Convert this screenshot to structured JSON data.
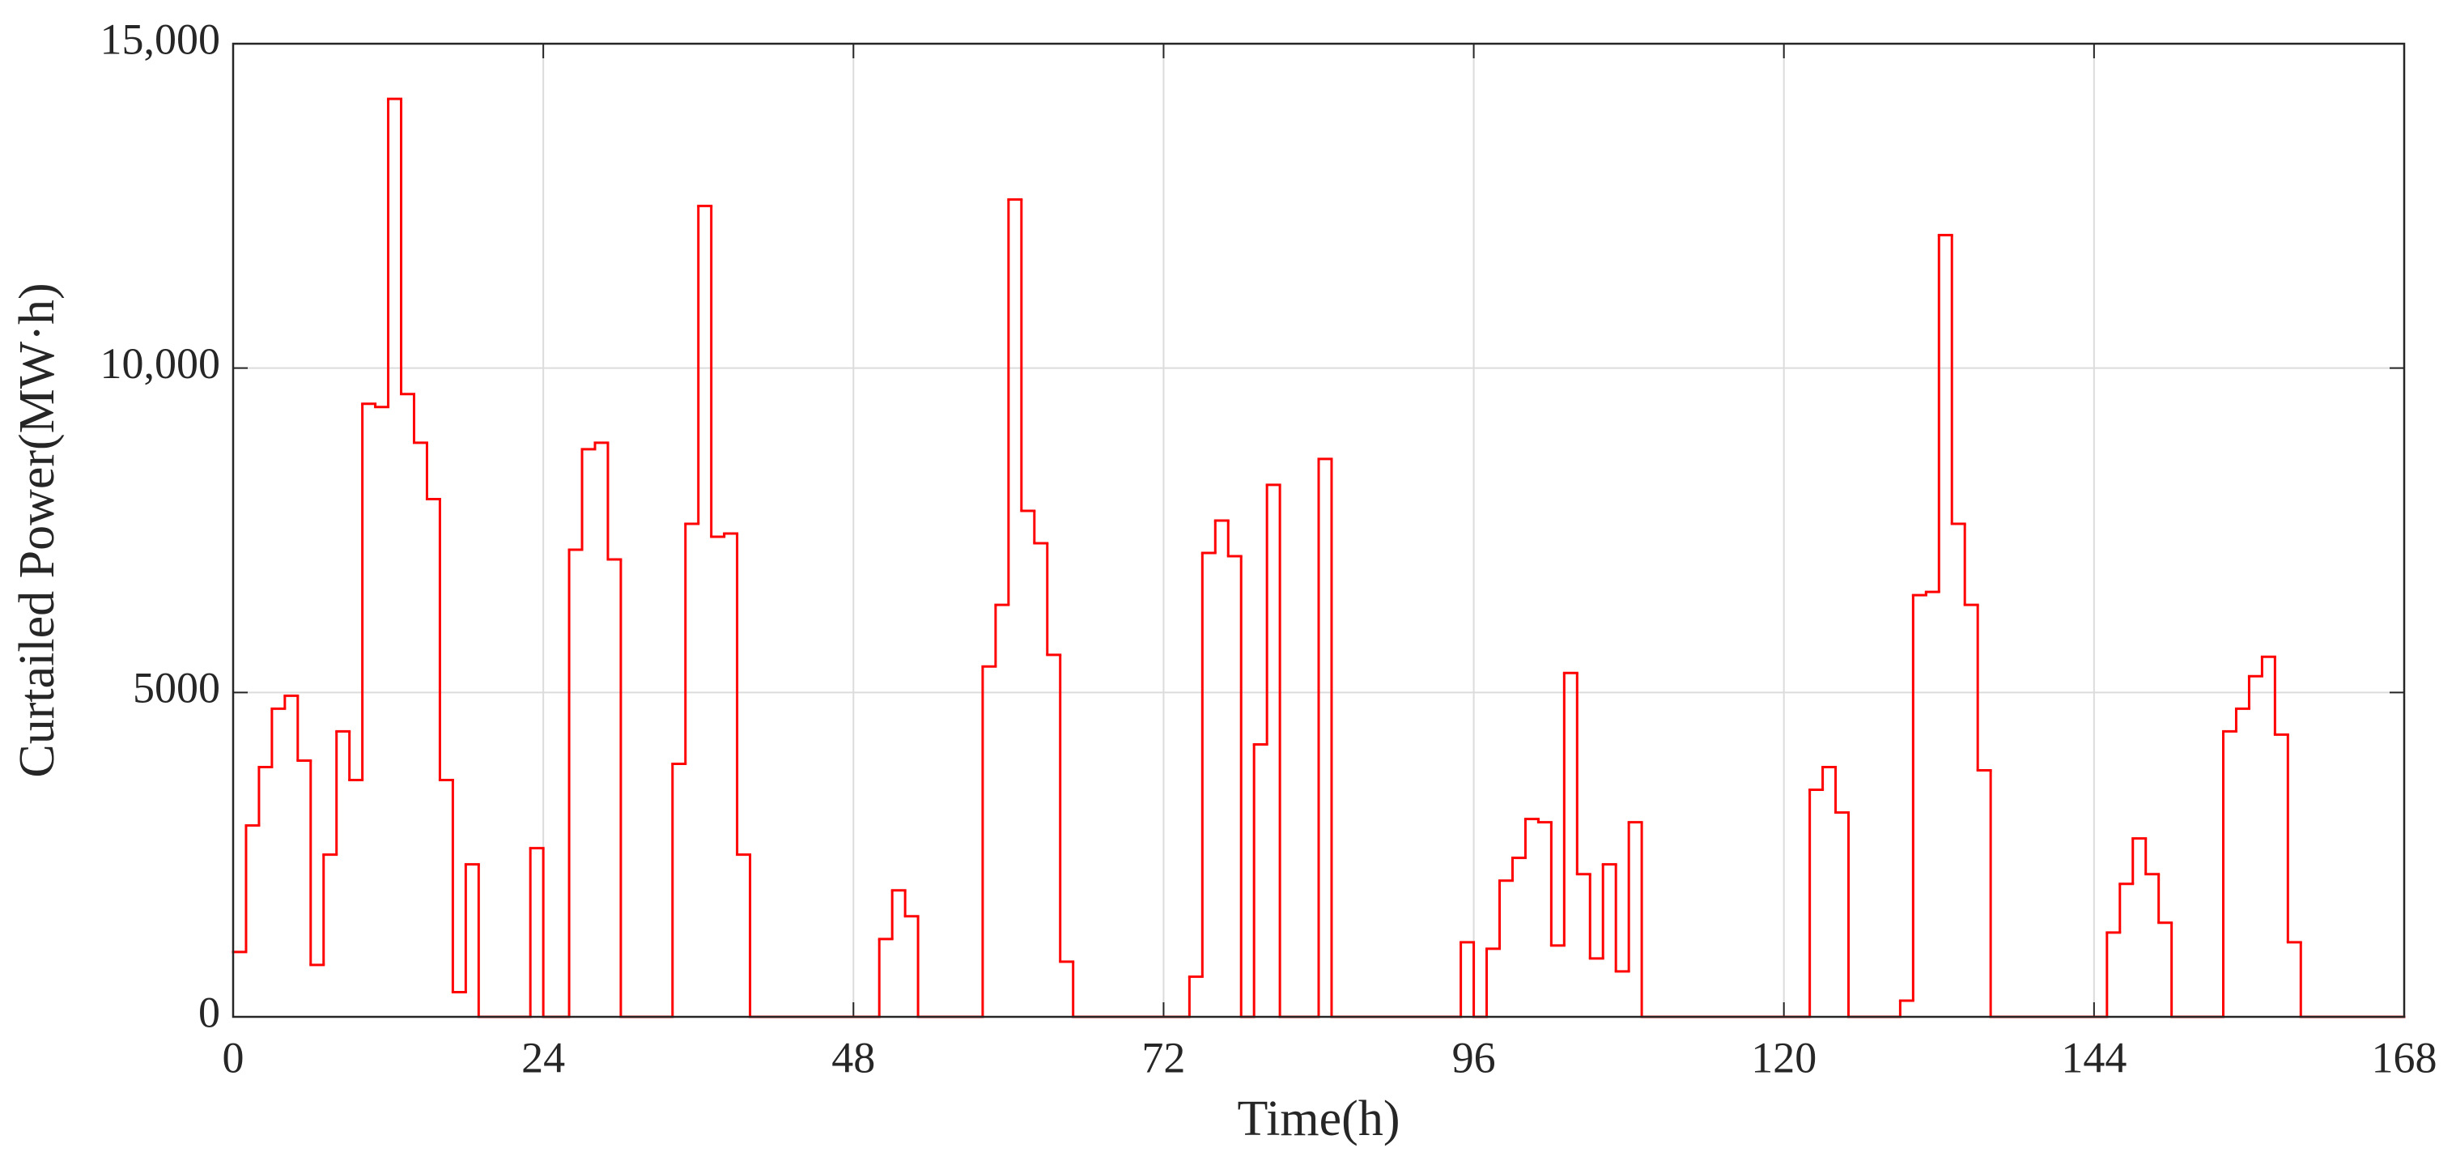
{
  "chart_data": {
    "type": "step",
    "x_label": "Time(h)",
    "y_label": "Curtailed Power(MW·h)",
    "xlim": [
      0,
      168
    ],
    "xticks": [
      0,
      24,
      48,
      72,
      96,
      120,
      144,
      168
    ],
    "ylim": [
      0,
      15000
    ],
    "yticks": [
      0,
      5000,
      {
        "value": 10000,
        "label": "10,000"
      },
      {
        "value": 15000,
        "label": "15,000"
      }
    ],
    "grid": true,
    "series": [
      {
        "color": "#ff0000",
        "x": [
          0,
          1,
          2,
          3,
          4,
          5,
          6,
          7,
          8,
          9,
          10,
          11,
          12,
          13,
          14,
          15,
          16,
          17,
          18,
          19,
          20,
          21,
          22,
          23,
          24,
          25,
          26,
          27,
          28,
          29,
          30,
          31,
          32,
          33,
          34,
          35,
          36,
          37,
          38,
          39,
          40,
          41,
          42,
          43,
          44,
          45,
          46,
          47,
          48,
          49,
          50,
          51,
          52,
          53,
          54,
          55,
          56,
          57,
          58,
          59,
          60,
          61,
          62,
          63,
          64,
          65,
          66,
          67,
          68,
          69,
          70,
          71,
          72,
          73,
          74,
          75,
          76,
          77,
          78,
          79,
          80,
          81,
          82,
          83,
          84,
          85,
          86,
          87,
          88,
          89,
          90,
          91,
          92,
          93,
          94,
          95,
          96,
          97,
          98,
          99,
          100,
          101,
          102,
          103,
          104,
          105,
          106,
          107,
          108,
          109,
          110,
          111,
          112,
          113,
          114,
          115,
          116,
          117,
          118,
          119,
          120,
          121,
          122,
          123,
          124,
          125,
          126,
          127,
          128,
          129,
          130,
          131,
          132,
          133,
          134,
          135,
          136,
          137,
          138,
          139,
          140,
          141,
          142,
          143,
          144,
          145,
          146,
          147,
          148,
          149,
          150,
          151,
          152,
          153,
          154,
          155,
          156,
          157,
          158,
          159,
          160,
          161,
          162,
          163,
          164,
          165,
          166,
          167
        ],
        "values": [
          1000,
          2950,
          3850,
          4750,
          4950,
          3950,
          800,
          2500,
          4400,
          3650,
          9450,
          9400,
          14150,
          9600,
          8850,
          7980,
          3650,
          380,
          2350,
          0,
          0,
          0,
          0,
          2600,
          0,
          0,
          7200,
          8750,
          8850,
          7050,
          0,
          0,
          0,
          0,
          3900,
          7600,
          12500,
          7400,
          7450,
          2500,
          0,
          0,
          0,
          0,
          0,
          0,
          0,
          0,
          0,
          0,
          1200,
          1950,
          1550,
          0,
          0,
          0,
          0,
          0,
          5400,
          6350,
          12600,
          7800,
          7300,
          5580,
          850,
          0,
          0,
          0,
          0,
          0,
          0,
          0,
          0,
          0,
          620,
          7150,
          7650,
          7100,
          0,
          4200,
          8200,
          0,
          0,
          0,
          8600,
          0,
          0,
          0,
          0,
          0,
          0,
          0,
          0,
          0,
          0,
          1150,
          0,
          1050,
          2100,
          2450,
          3050,
          3000,
          1100,
          5300,
          2200,
          900,
          2350,
          700,
          3000,
          0,
          0,
          0,
          0,
          0,
          0,
          0,
          0,
          0,
          0,
          0,
          0,
          0,
          3500,
          3850,
          3150,
          0,
          0,
          0,
          0,
          250,
          6500,
          6550,
          12050,
          7600,
          6350,
          3800,
          0,
          0,
          0,
          0,
          0,
          0,
          0,
          0,
          0,
          1300,
          2050,
          2750,
          2200,
          1450,
          0,
          0,
          0,
          0,
          4400,
          4750,
          5250,
          5550,
          4350,
          1150,
          0,
          0,
          0,
          0,
          0,
          0,
          0,
          0
        ]
      }
    ]
  }
}
